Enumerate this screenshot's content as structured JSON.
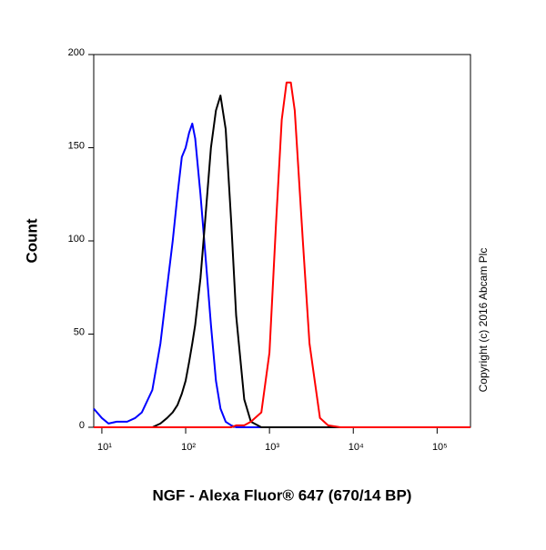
{
  "chart_data": {
    "type": "line",
    "x_label": "NGF - Alexa Fluor® 647 (670/14 BP)",
    "y_label": "Count",
    "annotation": "Copyright (c) 2016 Abcam Plc",
    "x_log": true,
    "x": [
      8,
      10,
      12,
      15,
      20,
      25,
      30,
      40,
      50,
      60,
      70,
      80,
      90,
      100,
      110,
      120,
      130,
      150,
      170,
      200,
      230,
      260,
      300,
      350,
      400,
      500,
      600,
      800,
      1000,
      1200,
      1400,
      1600,
      1800,
      2000,
      2500,
      3000,
      4000,
      5000,
      7000,
      10000,
      30000,
      100000,
      250000
    ],
    "series": [
      {
        "color": "#0000ff",
        "values": [
          10,
          5,
          2,
          3,
          3,
          5,
          8,
          20,
          45,
          75,
          100,
          125,
          145,
          150,
          158,
          163,
          155,
          125,
          95,
          55,
          25,
          10,
          3,
          1,
          0,
          0,
          0,
          0,
          0,
          0,
          0,
          0,
          0,
          0,
          0,
          0,
          0,
          0,
          0,
          0,
          0,
          0,
          0
        ]
      },
      {
        "color": "#000000",
        "values": [
          0,
          0,
          0,
          0,
          0,
          0,
          0,
          0,
          2,
          5,
          8,
          12,
          18,
          25,
          35,
          45,
          55,
          80,
          110,
          150,
          170,
          178,
          160,
          110,
          60,
          15,
          3,
          0,
          0,
          0,
          0,
          0,
          0,
          0,
          0,
          0,
          0,
          0,
          0,
          0,
          0,
          0,
          0
        ]
      },
      {
        "color": "#ff0000",
        "values": [
          0,
          0,
          0,
          0,
          0,
          0,
          0,
          0,
          0,
          0,
          0,
          0,
          0,
          0,
          0,
          0,
          0,
          0,
          0,
          0,
          0,
          0,
          0,
          0,
          1,
          1,
          3,
          8,
          40,
          110,
          165,
          185,
          185,
          170,
          100,
          45,
          5,
          1,
          0,
          0,
          0,
          0,
          0
        ]
      }
    ],
    "xlim": [
      8,
      250000
    ],
    "xticks": [
      {
        "value": 10,
        "label": "10¹"
      },
      {
        "value": 100,
        "label": "10²"
      },
      {
        "value": 1000,
        "label": "10³"
      },
      {
        "value": 10000,
        "label": "10⁴"
      },
      {
        "value": 100000,
        "label": "10⁵"
      }
    ],
    "ylim": [
      0,
      200
    ],
    "yticks": [
      0,
      50,
      100,
      150,
      200
    ]
  }
}
